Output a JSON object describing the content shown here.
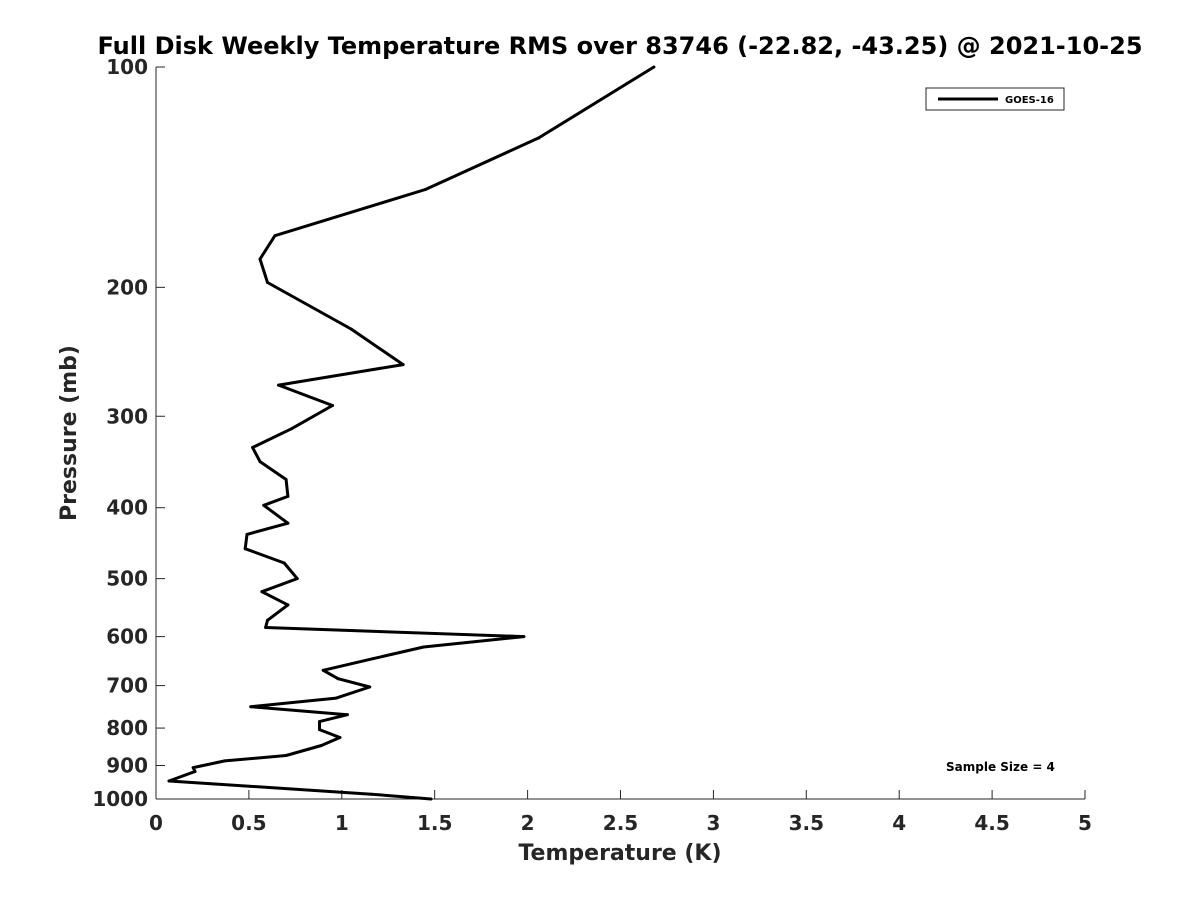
{
  "chart_data": {
    "type": "line",
    "title": "Full Disk Weekly Temperature RMS over 83746 (-22.82, -43.25) @ 2021-10-25",
    "xlabel": "Temperature (K)",
    "ylabel": "Pressure (mb)",
    "xlim": [
      0,
      5
    ],
    "ylim": [
      100,
      1000
    ],
    "yscale": "log",
    "y_reversed": true,
    "xticks": [
      0,
      0.5,
      1,
      1.5,
      2,
      2.5,
      3,
      3.5,
      4,
      4.5,
      5
    ],
    "xtick_labels": [
      "0",
      "0.5",
      "1",
      "1.5",
      "2",
      "2.5",
      "3",
      "3.5",
      "4",
      "4.5",
      "5"
    ],
    "yticks": [
      100,
      200,
      300,
      400,
      500,
      600,
      700,
      800,
      900,
      1000
    ],
    "ytick_labels": [
      "100",
      "200",
      "300",
      "400",
      "500",
      "600",
      "700",
      "800",
      "900",
      "1000"
    ],
    "grid": false,
    "legend_position": "top-right",
    "annotation": "Sample Size = 4",
    "series": [
      {
        "name": "GOES-16",
        "color": "#000000",
        "x": [
          2.68,
          2.06,
          1.45,
          0.64,
          0.56,
          0.6,
          1.05,
          1.33,
          0.66,
          0.95,
          0.73,
          0.52,
          0.56,
          0.7,
          0.71,
          0.58,
          0.71,
          0.49,
          0.48,
          0.69,
          0.76,
          0.57,
          0.71,
          0.6,
          0.59,
          1.98,
          1.44,
          1.17,
          0.9,
          0.98,
          1.15,
          0.97,
          0.51,
          1.03,
          0.88,
          0.88,
          0.99,
          0.89,
          0.7,
          0.37,
          0.2,
          0.21,
          0.07,
          1.16,
          1.48
        ],
        "y": [
          100,
          125,
          147,
          170,
          183,
          197,
          228,
          255,
          272,
          290,
          312,
          331,
          346,
          366,
          386,
          397,
          420,
          435,
          455,
          476,
          500,
          521,
          543,
          570,
          583,
          600,
          620,
          643,
          667,
          685,
          703,
          728,
          748,
          767,
          784,
          804,
          824,
          845,
          872,
          887,
          906,
          917,
          945,
          985,
          1000
        ]
      }
    ]
  }
}
